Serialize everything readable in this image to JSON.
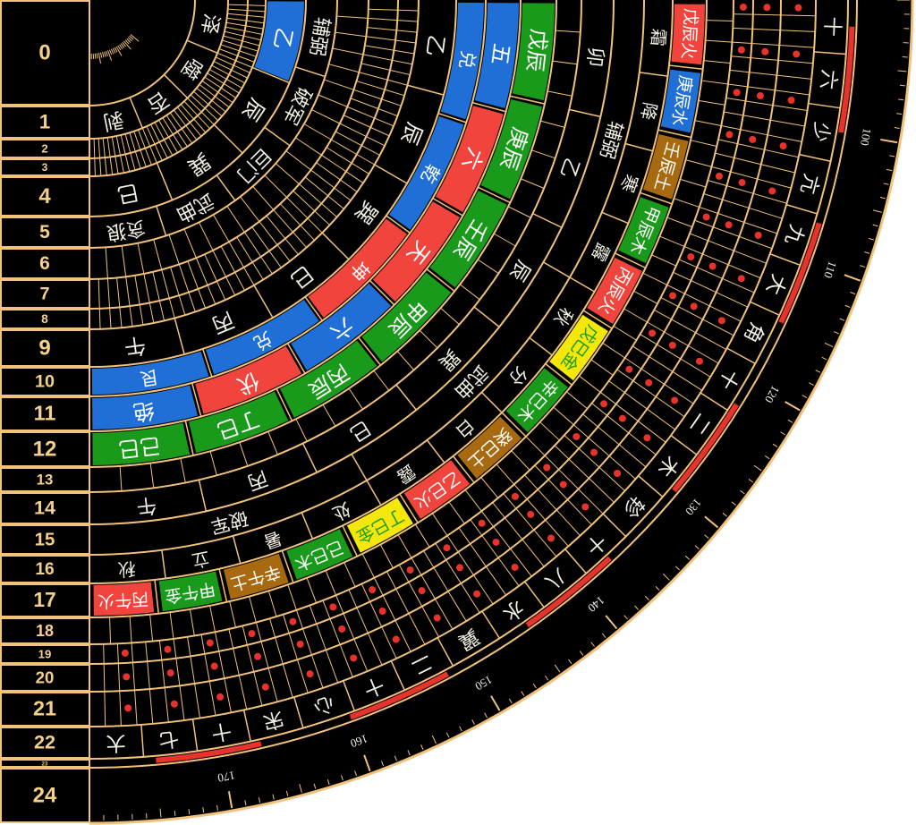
{
  "ring_labels": [
    0,
    1,
    2,
    3,
    4,
    5,
    6,
    7,
    8,
    9,
    10,
    11,
    12,
    13,
    14,
    15,
    16,
    17,
    18,
    19,
    20,
    21,
    22,
    23,
    24
  ],
  "rings": [
    {
      "cells": []
    },
    {
      "cells": [
        "泽",
        "噬",
        "否",
        "剥"
      ]
    },
    {
      "cells": []
    },
    {
      "cells": []
    },
    {
      "cells": [
        "乙",
        "辰",
        "巽",
        "巳"
      ],
      "fills": [
        "#1f6fd6",
        null,
        null,
        null
      ]
    },
    {
      "cells": [
        "辅弼",
        "破军",
        "巨门",
        "武曲",
        "贪狼"
      ]
    },
    {
      "cells": []
    },
    {
      "cells": []
    },
    {
      "cells": []
    },
    {
      "cells": [
        "乙",
        "辰",
        "巽",
        "巳",
        "丙",
        "午"
      ]
    },
    {
      "cells": [
        "兑",
        "乾",
        "坤",
        "兑",
        "艮"
      ],
      "fills": [
        "#1f6fd6",
        "#1f6fd6",
        "#f0443c",
        "#1f6fd6",
        "#1f6fd6"
      ]
    },
    {
      "cells": [
        "五",
        "六",
        "天",
        "六",
        "伏",
        "绝"
      ],
      "fills": [
        "#1f6fd6",
        "#f0443c",
        "#f0443c",
        "#1f6fd6",
        "#f0443c",
        "#1f6fd6"
      ]
    },
    {
      "cells": [
        "戊辰",
        "庚辰",
        "壬辰",
        "甲辰",
        "丙辰",
        "丁巳",
        "己巳"
      ],
      "fills": [
        "#1a9a1a",
        "#1a9a1a",
        "#1a9a1a",
        "#1a9a1a",
        "#1a9a1a",
        "#1a9a1a",
        "#1a9a1a"
      ]
    },
    {
      "cells": []
    },
    {
      "cells": [
        "卯",
        "乙",
        "辰",
        "巽",
        "巳",
        "丙",
        "午"
      ]
    },
    {
      "cells": [
        "辅弼",
        "武曲",
        "破军"
      ]
    },
    {
      "cells": [
        "霜",
        "降",
        "寒",
        "露",
        "秋",
        "分",
        "白",
        "露",
        "处",
        "暑",
        "立",
        "秋"
      ]
    },
    {
      "cells": [
        "戊辰火",
        "庚辰水",
        "壬辰土",
        "甲辰木",
        "丙辰火",
        "戊巳金",
        "辛巳木",
        "癸巳土",
        "乙巳火",
        "丁巳金",
        "己巳木",
        "辛午土",
        "甲午金",
        "丙午火"
      ],
      "fills": [
        "#f0443c",
        "#1f6fd6",
        "#a86a10",
        "#1a9a1a",
        "#f0443c",
        "#f5e70a",
        "#1a9a1a",
        "#a86a10",
        "#f0443c",
        "#f5e70a",
        "#1a9a1a",
        "#a86a10",
        "#1a9a1a",
        "#f0443c"
      ]
    },
    {
      "cells": []
    },
    {
      "cells": []
    },
    {
      "cells": []
    },
    {
      "cells": []
    },
    {
      "cells": [
        "十",
        "六",
        "少",
        "亢",
        "九",
        "大",
        "角",
        "十",
        "二",
        "木",
        "轸",
        "十",
        "八",
        "水",
        "翼",
        "二",
        "十",
        "心",
        "宋",
        "十",
        "七",
        "大"
      ]
    },
    {
      "cells": []
    },
    {
      "cells": []
    }
  ],
  "degree_labels": [
    100,
    110,
    120,
    130,
    140,
    150,
    160,
    170
  ]
}
